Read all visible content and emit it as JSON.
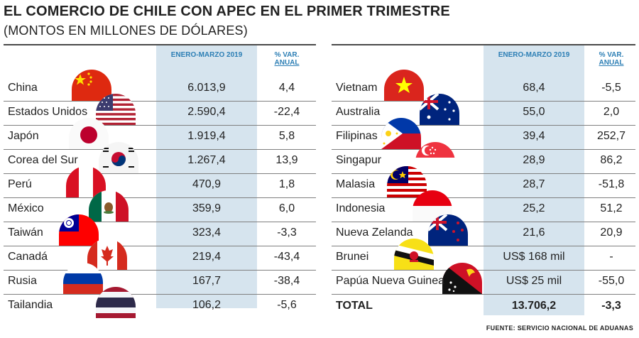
{
  "title": "EL COMERCIO DE CHILE CON APEC EN EL PRIMER TRIMESTRE",
  "subtitle": "(MONTOS EN MILLONES DE DÓLARES)",
  "columns": {
    "value": "ENERO-MARZO 2019",
    "pct_line1": "% VAR.",
    "pct_line2": "ANUAL"
  },
  "left_rows": [
    {
      "country": "China",
      "value": "6.013,9",
      "pct": "4,4",
      "flag": "china-flag-icon"
    },
    {
      "country": "Estados Unidos",
      "value": "2.590,4",
      "pct": "-22,4",
      "flag": "usa-flag-icon"
    },
    {
      "country": "Japón",
      "value": "1.919,4",
      "pct": "5,8",
      "flag": "japan-flag-icon"
    },
    {
      "country": "Corea del Sur",
      "value": "1.267,4",
      "pct": "13,9",
      "flag": "south-korea-flag-icon"
    },
    {
      "country": "Perú",
      "value": "470,9",
      "pct": "1,8",
      "flag": "peru-flag-icon"
    },
    {
      "country": "México",
      "value": "359,9",
      "pct": "6,0",
      "flag": "mexico-flag-icon"
    },
    {
      "country": "Taiwán",
      "value": "323,4",
      "pct": "-3,3",
      "flag": "taiwan-flag-icon"
    },
    {
      "country": "Canadá",
      "value": "219,4",
      "pct": "-43,4",
      "flag": "canada-flag-icon"
    },
    {
      "country": "Rusia",
      "value": "167,7",
      "pct": "-38,4",
      "flag": "russia-flag-icon"
    },
    {
      "country": "Tailandia",
      "value": "106,2",
      "pct": "-5,6",
      "flag": "thailand-flag-icon"
    }
  ],
  "right_rows": [
    {
      "country": "Vietnam",
      "value": "68,4",
      "pct": "-5,5",
      "flag": "vietnam-flag-icon"
    },
    {
      "country": "Australia",
      "value": "55,0",
      "pct": "2,0",
      "flag": "australia-flag-icon"
    },
    {
      "country": "Filipinas",
      "value": "39,4",
      "pct": "252,7",
      "flag": "philippines-flag-icon"
    },
    {
      "country": "Singapur",
      "value": "28,9",
      "pct": "86,2",
      "flag": "singapore-flag-icon"
    },
    {
      "country": "Malasia",
      "value": "28,7",
      "pct": "-51,8",
      "flag": "malaysia-flag-icon"
    },
    {
      "country": "Indonesia",
      "value": "25,2",
      "pct": "51,2",
      "flag": "indonesia-flag-icon"
    },
    {
      "country": "Nueva Zelanda",
      "value": "21,6",
      "pct": "20,9",
      "flag": "new-zealand-flag-icon"
    },
    {
      "country": "Brunei",
      "value": "US$ 168 mil",
      "pct": "-",
      "flag": "brunei-flag-icon"
    },
    {
      "country": "Papúa Nueva Guinea",
      "value": "US$ 25 mil",
      "pct": "-55,0",
      "flag": "papua-new-guinea-flag-icon"
    }
  ],
  "total": {
    "label": "TOTAL",
    "value": "13.706,2",
    "pct": "-3,3"
  },
  "source": "FUENTE: SERVICIO NACIONAL DE ADUANAS",
  "colors": {
    "column_bg": "#d6e4ee",
    "header_text": "#2d7fb5",
    "rule": "#4a4a4a"
  }
}
